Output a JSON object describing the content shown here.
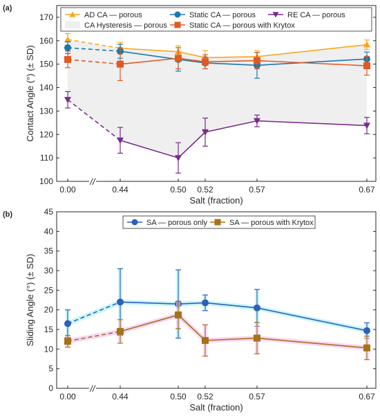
{
  "chart_data": [
    {
      "panel_label": "(a)",
      "type": "line",
      "xlabel": "Salt (fraction)",
      "ylabel": "Contact Angle (°) (± SD)",
      "ylim": [
        100,
        175
      ],
      "yticks": [
        100,
        110,
        120,
        130,
        140,
        150,
        160,
        170
      ],
      "x": [
        0.0,
        0.44,
        0.5,
        0.52,
        0.57,
        0.67
      ],
      "x_tick_labels": [
        "0.00",
        "0.44",
        "0.50",
        "0.52",
        "0.57",
        "0.67"
      ],
      "axis_break": "//",
      "grid": false,
      "legend_position": "top",
      "series": [
        {
          "name": "AD CA — porous",
          "color": "#f5a81f",
          "marker": "triangle-up",
          "values": [
            160.5,
            156.8,
            155.3,
            152.8,
            153.2,
            158.3
          ],
          "sd": [
            2.5,
            2.5,
            2.5,
            3.0,
            2.5,
            2.0
          ]
        },
        {
          "name": "Static CA — porous",
          "color": "#1a78ad",
          "marker": "circle",
          "values": [
            157.0,
            155.5,
            152.0,
            150.5,
            149.5,
            152.2
          ],
          "sd": [
            2.5,
            3.0,
            5.0,
            2.5,
            5.5,
            3.0
          ]
        },
        {
          "name": "Static CA — porous with Krytox",
          "color": "#e05a24",
          "marker": "square",
          "values": [
            152.0,
            150.0,
            152.5,
            151.0,
            151.5,
            149.3
          ],
          "sd": [
            3.5,
            7.0,
            4.5,
            3.0,
            3.5,
            4.0
          ]
        },
        {
          "name": "RE CA — porous",
          "color": "#7a2a8c",
          "marker": "triangle-down",
          "values": [
            134.8,
            117.5,
            110.0,
            121.0,
            125.8,
            123.8
          ],
          "sd": [
            3.5,
            5.5,
            6.5,
            6.0,
            2.5,
            3.5
          ]
        }
      ],
      "hysteresis_band": {
        "name": "CA Hysteresis — porous",
        "color": "#efefef",
        "between": [
          "AD CA — porous",
          "RE CA — porous"
        ]
      }
    },
    {
      "panel_label": "(b)",
      "type": "line",
      "xlabel": "Salt (fraction)",
      "ylabel": "Sliding Angle (°) (± SD)",
      "ylim": [
        0,
        45
      ],
      "yticks": [
        0,
        5,
        10,
        15,
        20,
        25,
        30,
        35,
        40,
        45
      ],
      "x": [
        0.0,
        0.44,
        0.5,
        0.52,
        0.57,
        0.67
      ],
      "x_tick_labels": [
        "0.00",
        "0.44",
        "0.50",
        "0.52",
        "0.57",
        "0.67"
      ],
      "axis_break": "//",
      "grid": false,
      "legend_position": "top",
      "series": [
        {
          "name": "SA — porous only",
          "color": "#2f5fb8",
          "glow": "#aef3f7",
          "marker": "circle",
          "values": [
            16.5,
            22.0,
            21.5,
            21.8,
            20.5,
            14.7
          ],
          "sd": [
            3.5,
            8.5,
            8.7,
            2.0,
            4.7,
            2.0
          ]
        },
        {
          "name": "SA — porous with Krytox",
          "color": "#a5721a",
          "glow": "#f6c4ee",
          "marker": "square",
          "values": [
            12.0,
            14.5,
            18.7,
            12.2,
            12.8,
            10.3
          ],
          "sd": [
            1.5,
            3.0,
            3.5,
            4.0,
            4.0,
            3.0
          ]
        }
      ]
    }
  ]
}
